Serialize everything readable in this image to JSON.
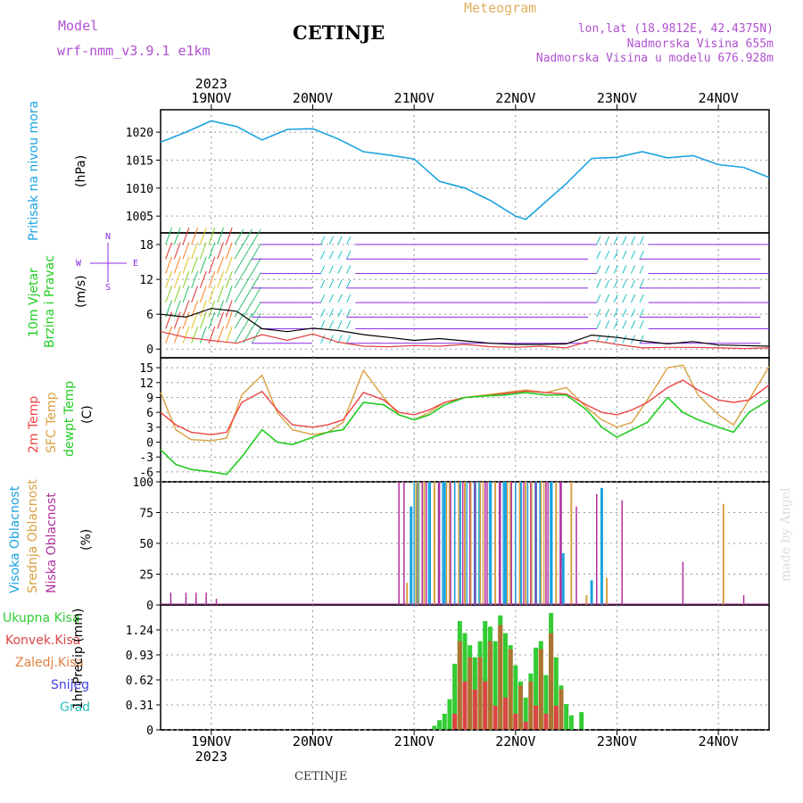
{
  "header": {
    "model_label": "Model",
    "model_name": "wrf-nmm_v3.9.1 e1km",
    "station": "CETINJE",
    "meteogram": "Meteogram",
    "lonlat": "lon,lat (18.9812E, 42.4375N)",
    "elevation": "Nadmorska Visina 655m",
    "model_elevation": "Nadmorska Visina u modelu 676.928m",
    "footer_station": "CETINJE",
    "watermark": "made by Angel"
  },
  "colors": {
    "pressure": "#1aa3e0",
    "temp2m": "#ee4444",
    "sfc": "#d9a040",
    "dewpt": "#22cc22",
    "wind_purple": "#8a2be2",
    "wind_cyan": "#20c0c0",
    "high_cloud": "#1aa3e0",
    "mid_cloud": "#d9a040",
    "low_cloud": "#b030a0",
    "precip_total": "#33cc33",
    "precip_conv": "#dd4444",
    "precip_strat": "#e08040",
    "snow": "#4040dd",
    "graupel": "#30c0c0"
  },
  "chart_data": [
    {
      "type": "line",
      "panel": "pressure",
      "ylabel": "Pritisak na nivou mora",
      "yunit": "(hPa)",
      "ylim": [
        1002,
        1024
      ],
      "yticks": [
        1005,
        1010,
        1015,
        1020
      ],
      "x_days": [
        18.5,
        18.75,
        19.0,
        19.25,
        19.5,
        19.75,
        20.0,
        20.25,
        20.5,
        20.75,
        21.0,
        21.25,
        21.5,
        21.75,
        22.0,
        22.1,
        22.25,
        22.5,
        22.75,
        23.0,
        23.25,
        23.5,
        23.75,
        24.0,
        24.25,
        24.5
      ],
      "series": [
        {
          "values": [
            1018.2,
            1020.0,
            1022.0,
            1021.0,
            1018.6,
            1020.5,
            1020.6,
            1018.8,
            1016.5,
            1015.9,
            1015.2,
            1011.2,
            1010.0,
            1007.8,
            1005.0,
            1004.4,
            1006.8,
            1010.8,
            1015.3,
            1015.5,
            1016.5,
            1015.4,
            1015.8,
            1014.2,
            1013.7,
            1011.9
          ]
        }
      ]
    },
    {
      "type": "line",
      "panel": "wind",
      "ylabel": "10m Vjetar Brzina i Pravac",
      "yunit": "(m/s)",
      "ylim": [
        -1.5,
        20
      ],
      "yticks": [
        0,
        6,
        12,
        18
      ],
      "direction_legend": [
        "N",
        "E",
        "S",
        "W"
      ],
      "x_days": [
        18.5,
        18.75,
        19.0,
        19.25,
        19.5,
        19.75,
        20.0,
        20.25,
        20.5,
        20.75,
        21.0,
        21.25,
        21.5,
        21.75,
        22.0,
        22.25,
        22.5,
        22.75,
        23.0,
        23.25,
        23.5,
        23.75,
        24.0,
        24.25,
        24.5
      ],
      "series": [
        {
          "values": [
            6.0,
            5.5,
            7.0,
            6.5,
            3.5,
            3.0,
            3.6,
            3.2,
            2.5,
            2.0,
            1.5,
            1.8,
            1.4,
            1.0,
            0.8,
            0.8,
            0.9,
            2.4,
            2.0,
            1.4,
            0.9,
            1.3,
            0.7,
            0.6,
            0.5
          ]
        },
        {
          "values": [
            3.0,
            2.0,
            1.5,
            1.0,
            2.5,
            1.5,
            2.6,
            1.2,
            0.5,
            0.4,
            0.6,
            0.5,
            0.8,
            0.4,
            0.3,
            0.5,
            0.2,
            1.5,
            0.8,
            0.2,
            0.3,
            0.3,
            0.2,
            0.1,
            0.2
          ]
        }
      ]
    },
    {
      "type": "line",
      "panel": "temperature",
      "ylabel": [
        "2m Temp",
        "SFC Temp",
        "dewpt Temp"
      ],
      "yunit": "(C)",
      "ylim": [
        -8,
        17
      ],
      "yticks": [
        -6,
        -3,
        0,
        3,
        6,
        9,
        12,
        15
      ],
      "x_days": [
        18.5,
        18.65,
        18.8,
        19.0,
        19.15,
        19.3,
        19.5,
        19.65,
        19.8,
        20.0,
        20.15,
        20.3,
        20.5,
        20.7,
        20.85,
        21.0,
        21.15,
        21.3,
        21.5,
        21.7,
        21.9,
        22.1,
        22.3,
        22.5,
        22.7,
        22.85,
        23.0,
        23.15,
        23.3,
        23.5,
        23.65,
        23.8,
        24.0,
        24.15,
        24.3,
        24.5
      ],
      "series": [
        {
          "name": "2m Temp",
          "values": [
            6.0,
            3.5,
            2.0,
            1.5,
            2.0,
            8.0,
            10.2,
            6.5,
            3.5,
            3.0,
            3.5,
            4.5,
            10.0,
            8.5,
            6.0,
            5.5,
            6.5,
            8.0,
            9.0,
            9.3,
            9.8,
            10.3,
            10.0,
            9.7,
            7.5,
            6.0,
            5.5,
            6.5,
            8.0,
            11.0,
            12.5,
            10.5,
            8.5,
            8.0,
            8.5,
            11.5
          ]
        },
        {
          "name": "SFC Temp",
          "values": [
            10.0,
            2.5,
            0.5,
            0.3,
            0.8,
            9.5,
            13.5,
            6.0,
            2.5,
            1.5,
            2.0,
            4.0,
            14.5,
            9.0,
            5.5,
            4.5,
            6.0,
            8.0,
            9.0,
            9.5,
            10.0,
            10.5,
            10.0,
            11.0,
            7.0,
            4.5,
            3.0,
            4.0,
            8.5,
            15.0,
            15.5,
            9.5,
            5.5,
            3.5,
            8.5,
            15.2
          ]
        },
        {
          "name": "dewpt Temp",
          "values": [
            -1.5,
            -4.5,
            -5.5,
            -6.0,
            -6.5,
            -3.0,
            2.5,
            0.0,
            -0.5,
            1.0,
            2.0,
            2.5,
            8.0,
            7.5,
            5.5,
            4.5,
            5.5,
            7.5,
            9.0,
            9.3,
            9.5,
            10.0,
            9.5,
            9.5,
            6.5,
            3.0,
            1.0,
            2.5,
            4.0,
            9.0,
            6.0,
            4.5,
            3.0,
            2.0,
            6.0,
            8.5
          ]
        }
      ]
    },
    {
      "type": "bar",
      "panel": "cloud",
      "ylabel": [
        "Visoka Oblacnost",
        "Srednja Oblacnost",
        "Niska Oblacnost"
      ],
      "yunit": "(%)",
      "ylim": [
        0,
        100
      ],
      "yticks": [
        0,
        25,
        50,
        75,
        100
      ],
      "series": [
        {
          "name": "Visoka Oblacnost",
          "x": [
            20.97,
            21.04,
            21.15,
            21.3,
            21.45,
            21.6,
            21.75,
            21.9,
            22.05,
            22.2,
            22.35,
            22.47,
            22.75,
            22.85
          ],
          "values": [
            80,
            100,
            100,
            100,
            100,
            100,
            100,
            100,
            100,
            100,
            100,
            42,
            20,
            95
          ]
        },
        {
          "name": "Srednja Oblacnost",
          "x": [
            20.93,
            21.02,
            21.1,
            21.2,
            21.35,
            21.5,
            21.65,
            21.8,
            21.95,
            22.1,
            22.25,
            22.4,
            22.55,
            22.7,
            22.9,
            24.05
          ],
          "values": [
            18,
            100,
            100,
            100,
            100,
            100,
            100,
            100,
            100,
            100,
            100,
            100,
            100,
            8,
            22,
            82
          ]
        },
        {
          "name": "Niska Oblacnost",
          "x": [
            18.6,
            18.75,
            18.85,
            18.95,
            19.05,
            20.85,
            20.9,
            21.08,
            21.25,
            21.4,
            21.55,
            21.7,
            21.85,
            22.0,
            22.15,
            22.3,
            22.45,
            22.6,
            22.8,
            23.05,
            23.65,
            24.25
          ],
          "values": [
            10,
            10,
            10,
            10,
            5,
            100,
            100,
            100,
            100,
            100,
            100,
            100,
            100,
            100,
            100,
            100,
            100,
            80,
            90,
            85,
            35,
            8
          ]
        }
      ]
    },
    {
      "type": "bar",
      "panel": "precip",
      "ylabel": "1hr Precip",
      "yunit": "(mm)",
      "ylim": [
        0,
        1.55
      ],
      "yticks": [
        0,
        0.31,
        0.62,
        0.93,
        1.24
      ],
      "xlabel_days": [
        "19NOV",
        "20NOV",
        "21NOV",
        "22NOV",
        "23NOV",
        "24NOV"
      ],
      "year": "2023",
      "legend": [
        "Ukupna Kisa",
        "Konvek.Kisa",
        "Zaledj.Kisa",
        "Snijeg",
        "Grad"
      ],
      "series": [
        {
          "name": "Ukupna Kisa",
          "x": [
            21.2,
            21.25,
            21.3,
            21.35,
            21.4,
            21.45,
            21.5,
            21.55,
            21.6,
            21.65,
            21.7,
            21.75,
            21.8,
            21.85,
            21.9,
            21.95,
            22.0,
            22.05,
            22.1,
            22.15,
            22.2,
            22.25,
            22.3,
            22.35,
            22.4,
            22.45,
            22.5,
            22.55,
            22.65
          ],
          "values": [
            0.05,
            0.12,
            0.2,
            0.38,
            0.82,
            1.35,
            1.2,
            1.05,
            0.9,
            1.1,
            1.35,
            1.28,
            1.1,
            1.42,
            1.2,
            1.05,
            0.8,
            0.6,
            0.4,
            0.7,
            1.02,
            1.1,
            0.68,
            1.45,
            0.9,
            0.55,
            0.32,
            0.18,
            0.22
          ]
        },
        {
          "name": "Konvek.Kisa",
          "x": [
            21.4,
            21.5,
            21.6,
            21.7,
            21.8,
            21.9,
            22.0,
            22.1,
            22.2,
            22.3,
            22.4
          ],
          "values": [
            0.2,
            0.6,
            0.5,
            0.6,
            0.3,
            0.4,
            0.2,
            0.1,
            0.3,
            0.2,
            0.3
          ]
        },
        {
          "name": "Zaledj.Kisa",
          "x": [
            21.45,
            21.55,
            21.65,
            21.75,
            21.85,
            21.95,
            22.05,
            22.15,
            22.25,
            22.35,
            22.45
          ],
          "values": [
            1.1,
            0.9,
            0.9,
            1.1,
            1.3,
            1.0,
            0.55,
            0.6,
            1.0,
            1.2,
            0.5
          ]
        }
      ]
    }
  ]
}
